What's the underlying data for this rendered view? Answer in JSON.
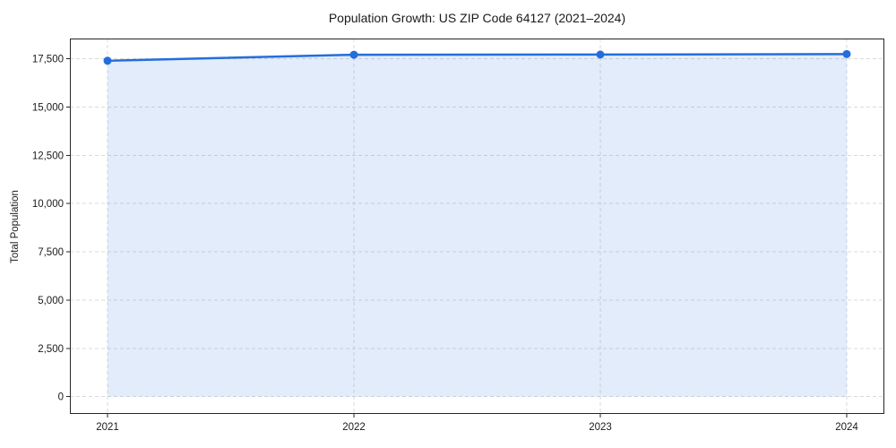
{
  "figure": {
    "title": "Population Growth: US ZIP Code 64127 (2021–2024)",
    "y_axis_label": "Total Population"
  },
  "chart_data": {
    "type": "area",
    "title": "Population Growth: US ZIP Code 64127 (2021–2024)",
    "xlabel": "",
    "ylabel": "Total Population",
    "x": [
      2021,
      2022,
      2023,
      2024
    ],
    "xtick_labels": [
      "2021",
      "2022",
      "2023",
      "2024"
    ],
    "series": [
      {
        "name": "Total Population",
        "values": [
          17400,
          17710,
          17720,
          17745
        ]
      }
    ],
    "yticks": [
      0,
      2500,
      5000,
      7500,
      10000,
      12500,
      15000,
      17500
    ],
    "ytick_labels": [
      "0",
      "2,500",
      "5,000",
      "7,500",
      "10,000",
      "12,500",
      "15,000",
      "17,500"
    ],
    "ylim": [
      -900,
      18550
    ],
    "grid": true,
    "grid_style": "dashed",
    "legend": "none",
    "marker": "circle",
    "colors": {
      "line": "#236edc",
      "marker": "#236edc",
      "fill": "#236edc",
      "fill_opacity": 0.13,
      "grid": "#d9d9d9",
      "spine": "#262626",
      "tick_text": "#1a1a1a",
      "background": "#ffffff"
    }
  }
}
